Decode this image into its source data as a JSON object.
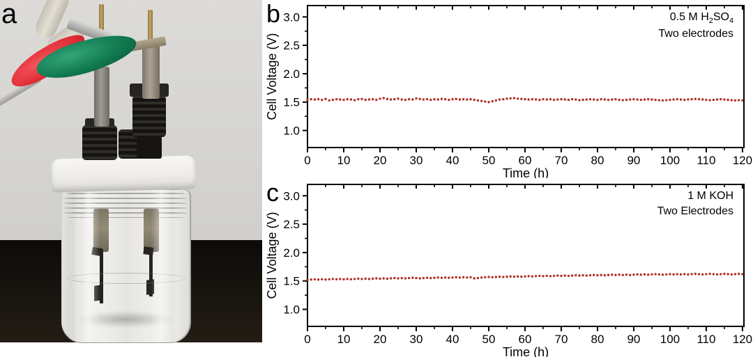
{
  "figure": {
    "panel_a_label": "a",
    "background_color": "#ffffff",
    "photo_colors": {
      "wall": "#d6d5d2",
      "table": "#17130e",
      "lid": "#f2f1ed",
      "glass": "#e8e7e4",
      "green_clip": "#147a52",
      "red_clip": "#e0303a",
      "brass_pin": "#bb9c58",
      "black_fitting": "#1d1c1a",
      "grey_cable": "#b5b3b0",
      "cream_cable": "#d9d4c7",
      "electrode_plate": "#23221f"
    }
  },
  "chart_data": [
    {
      "panel_label": "b",
      "type": "scatter",
      "title": "",
      "xlabel": "Time (h)",
      "ylabel": "Cell Voltage (V)",
      "xlim": [
        0,
        120.4
      ],
      "ylim": [
        0.7,
        3.2
      ],
      "grid": false,
      "legend": "none",
      "marker_color": "#b03127",
      "axis_color": "#000000",
      "xtick_values": [
        0,
        10,
        20,
        30,
        40,
        50,
        60,
        70,
        80,
        90,
        100,
        110,
        120
      ],
      "xtick_labels": [
        "0",
        "10",
        "20",
        "30",
        "40",
        "50",
        "60",
        "70",
        "80",
        "90",
        "100",
        "110",
        "120"
      ],
      "xtick_minor_step": 5,
      "ytick_values": [
        1.0,
        1.5,
        2.0,
        2.5,
        3.0
      ],
      "ytick_labels": [
        "1.0",
        "1.5",
        "2.0",
        "2.5",
        "3.0"
      ],
      "ytick_minor_values": [
        1.25,
        1.75,
        2.25,
        2.75
      ],
      "annotation": [
        {
          "segments": [
            {
              "text": "0.5 M H"
            },
            {
              "text": "2",
              "sub": true
            },
            {
              "text": "SO"
            },
            {
              "text": "4",
              "sub": true
            }
          ]
        },
        {
          "segments": [
            {
              "text": "Two electrodes"
            }
          ]
        }
      ],
      "x_start": 0,
      "x_step": 1,
      "y": [
        1.54,
        1.55,
        1.545,
        1.55,
        1.54,
        1.555,
        1.53,
        1.54,
        1.55,
        1.545,
        1.54,
        1.55,
        1.545,
        1.535,
        1.55,
        1.555,
        1.54,
        1.545,
        1.55,
        1.54,
        1.56,
        1.57,
        1.555,
        1.545,
        1.55,
        1.56,
        1.545,
        1.54,
        1.55,
        1.545,
        1.565,
        1.555,
        1.545,
        1.55,
        1.54,
        1.55,
        1.545,
        1.555,
        1.55,
        1.54,
        1.55,
        1.555,
        1.545,
        1.55,
        1.545,
        1.55,
        1.54,
        1.53,
        1.52,
        1.51,
        1.5,
        1.515,
        1.53,
        1.545,
        1.55,
        1.56,
        1.565,
        1.57,
        1.56,
        1.555,
        1.55,
        1.545,
        1.55,
        1.545,
        1.54,
        1.55,
        1.545,
        1.55,
        1.54,
        1.545,
        1.55,
        1.545,
        1.54,
        1.55,
        1.545,
        1.535,
        1.54,
        1.545,
        1.55,
        1.545,
        1.54,
        1.55,
        1.545,
        1.54,
        1.545,
        1.55,
        1.54,
        1.535,
        1.54,
        1.545,
        1.55,
        1.545,
        1.54,
        1.545,
        1.55,
        1.545,
        1.54,
        1.535,
        1.53,
        1.535,
        1.54,
        1.545,
        1.55,
        1.545,
        1.54,
        1.545,
        1.55,
        1.555,
        1.55,
        1.545,
        1.54,
        1.535,
        1.54,
        1.545,
        1.55,
        1.545,
        1.54,
        1.535,
        1.53,
        1.535,
        1.53
      ]
    },
    {
      "panel_label": "c",
      "type": "scatter",
      "title": "",
      "xlabel": "Time (h)",
      "ylabel": "Cell Voltage (V)",
      "xlim": [
        0,
        120.4
      ],
      "ylim": [
        0.7,
        3.2
      ],
      "grid": false,
      "legend": "none",
      "marker_color": "#b03127",
      "axis_color": "#000000",
      "xtick_values": [
        0,
        10,
        20,
        30,
        40,
        50,
        60,
        70,
        80,
        90,
        100,
        110,
        120
      ],
      "xtick_labels": [
        "0",
        "10",
        "20",
        "30",
        "40",
        "50",
        "60",
        "70",
        "80",
        "90",
        "100",
        "110",
        "120"
      ],
      "xtick_minor_step": 5,
      "ytick_values": [
        1.0,
        1.5,
        2.0,
        2.5,
        3.0
      ],
      "ytick_labels": [
        "1.0",
        "1.5",
        "2.0",
        "2.5",
        "3.0"
      ],
      "ytick_minor_values": [
        1.25,
        1.75,
        2.25,
        2.75
      ],
      "annotation": [
        {
          "segments": [
            {
              "text": "1 M KOH"
            }
          ]
        },
        {
          "segments": [
            {
              "text": "Two Electrodes"
            }
          ]
        }
      ],
      "x_start": 0,
      "x_step": 1,
      "y": [
        1.52,
        1.525,
        1.53,
        1.525,
        1.53,
        1.525,
        1.53,
        1.535,
        1.53,
        1.535,
        1.53,
        1.535,
        1.53,
        1.535,
        1.54,
        1.535,
        1.54,
        1.535,
        1.54,
        1.545,
        1.54,
        1.545,
        1.54,
        1.545,
        1.55,
        1.545,
        1.55,
        1.545,
        1.55,
        1.555,
        1.55,
        1.545,
        1.55,
        1.555,
        1.55,
        1.555,
        1.56,
        1.555,
        1.56,
        1.555,
        1.56,
        1.565,
        1.56,
        1.565,
        1.56,
        1.565,
        1.545,
        1.55,
        1.56,
        1.565,
        1.57,
        1.565,
        1.57,
        1.575,
        1.57,
        1.575,
        1.58,
        1.575,
        1.58,
        1.575,
        1.58,
        1.585,
        1.58,
        1.585,
        1.59,
        1.585,
        1.59,
        1.585,
        1.59,
        1.595,
        1.59,
        1.595,
        1.59,
        1.595,
        1.6,
        1.595,
        1.6,
        1.595,
        1.6,
        1.605,
        1.6,
        1.605,
        1.6,
        1.605,
        1.61,
        1.605,
        1.61,
        1.605,
        1.61,
        1.605,
        1.61,
        1.615,
        1.61,
        1.615,
        1.61,
        1.615,
        1.62,
        1.615,
        1.61,
        1.615,
        1.62,
        1.615,
        1.62,
        1.615,
        1.62,
        1.615,
        1.62,
        1.625,
        1.62,
        1.615,
        1.62,
        1.625,
        1.62,
        1.615,
        1.62,
        1.625,
        1.62,
        1.615,
        1.62,
        1.625,
        1.62
      ]
    }
  ]
}
